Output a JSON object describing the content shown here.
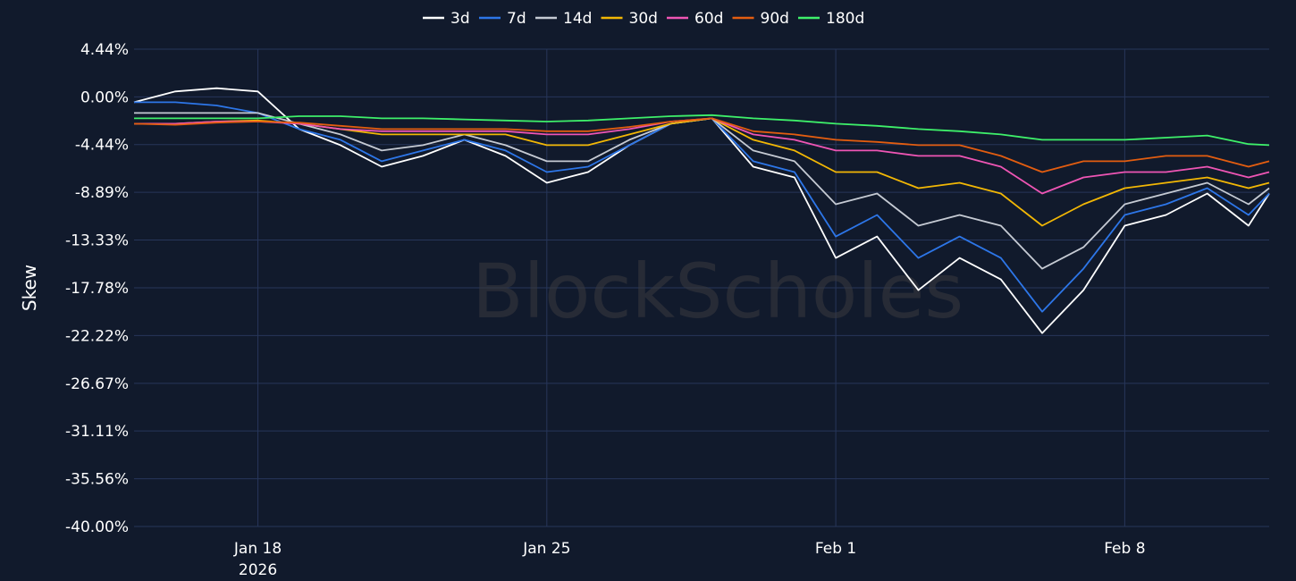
{
  "chart_data": {
    "type": "line",
    "watermark": "BlockScholes",
    "ylabel": "Skew",
    "ylim": [
      -40.0,
      4.44
    ],
    "y_ticks": [
      "4.44%",
      "0.00%",
      "-4.44%",
      "-8.89%",
      "-13.33%",
      "-17.78%",
      "-22.22%",
      "-26.67%",
      "-31.11%",
      "-35.56%",
      "-40.00%"
    ],
    "y_tick_values": [
      4.44,
      0.0,
      -4.44,
      -8.89,
      -13.33,
      -17.78,
      -22.22,
      -26.67,
      -31.11,
      -35.56,
      -40.0
    ],
    "xlim": [
      "2026-01-15",
      "2026-02-11T12:00"
    ],
    "x_ticks": [
      {
        "date": "2026-01-18",
        "label": "Jan 18",
        "sublabel": "2026"
      },
      {
        "date": "2026-01-25",
        "label": "Jan 25",
        "sublabel": ""
      },
      {
        "date": "2026-02-01",
        "label": "Feb 1",
        "sublabel": ""
      },
      {
        "date": "2026-02-08",
        "label": "Feb 8",
        "sublabel": ""
      }
    ],
    "grid": true,
    "legend_position": "top-center",
    "series": [
      {
        "name": "3d",
        "color": "#ffffff",
        "points": [
          [
            "2026-01-15",
            -0.5
          ],
          [
            "2026-01-16",
            0.5
          ],
          [
            "2026-01-17",
            0.8
          ],
          [
            "2026-01-18",
            0.5
          ],
          [
            "2026-01-19",
            -3
          ],
          [
            "2026-01-20",
            -4.5
          ],
          [
            "2026-01-21",
            -6.5
          ],
          [
            "2026-01-22",
            -5.5
          ],
          [
            "2026-01-23",
            -4
          ],
          [
            "2026-01-24",
            -5.5
          ],
          [
            "2026-01-25",
            -8
          ],
          [
            "2026-01-26",
            -7
          ],
          [
            "2026-01-27",
            -4.5
          ],
          [
            "2026-01-28",
            -2.5
          ],
          [
            "2026-01-29",
            -2
          ],
          [
            "2026-01-30",
            -6.5
          ],
          [
            "2026-01-31",
            -7.5
          ],
          [
            "2026-02-01",
            -15
          ],
          [
            "2026-02-02",
            -13
          ],
          [
            "2026-02-03",
            -18
          ],
          [
            "2026-02-04",
            -15
          ],
          [
            "2026-02-05",
            -17
          ],
          [
            "2026-02-06",
            -22
          ],
          [
            "2026-02-07",
            -18
          ],
          [
            "2026-02-08",
            -12
          ],
          [
            "2026-02-09",
            -11
          ],
          [
            "2026-02-10",
            -9
          ],
          [
            "2026-02-11",
            -12
          ],
          [
            "2026-02-11T12:00",
            -9
          ]
        ]
      },
      {
        "name": "7d",
        "color": "#2d76e8",
        "points": [
          [
            "2026-01-15",
            -0.5
          ],
          [
            "2026-01-16",
            -0.5
          ],
          [
            "2026-01-17",
            -0.8
          ],
          [
            "2026-01-18",
            -1.5
          ],
          [
            "2026-01-19",
            -3
          ],
          [
            "2026-01-20",
            -4
          ],
          [
            "2026-01-21",
            -6
          ],
          [
            "2026-01-22",
            -5
          ],
          [
            "2026-01-23",
            -4
          ],
          [
            "2026-01-24",
            -5
          ],
          [
            "2026-01-25",
            -7
          ],
          [
            "2026-01-26",
            -6.5
          ],
          [
            "2026-01-27",
            -4.5
          ],
          [
            "2026-01-28",
            -2.5
          ],
          [
            "2026-01-29",
            -2
          ],
          [
            "2026-01-30",
            -6
          ],
          [
            "2026-01-31",
            -7
          ],
          [
            "2026-02-01",
            -13
          ],
          [
            "2026-02-02",
            -11
          ],
          [
            "2026-02-03",
            -15
          ],
          [
            "2026-02-04",
            -13
          ],
          [
            "2026-02-05",
            -15
          ],
          [
            "2026-02-06",
            -20
          ],
          [
            "2026-02-07",
            -16
          ],
          [
            "2026-02-08",
            -11
          ],
          [
            "2026-02-09",
            -10
          ],
          [
            "2026-02-10",
            -8.5
          ],
          [
            "2026-02-11",
            -11
          ],
          [
            "2026-02-11T12:00",
            -9
          ]
        ]
      },
      {
        "name": "14d",
        "color": "#c5cad3",
        "points": [
          [
            "2026-01-15",
            -1.5
          ],
          [
            "2026-01-16",
            -1.5
          ],
          [
            "2026-01-17",
            -1.5
          ],
          [
            "2026-01-18",
            -1.5
          ],
          [
            "2026-01-19",
            -2.5
          ],
          [
            "2026-01-20",
            -3.5
          ],
          [
            "2026-01-21",
            -5
          ],
          [
            "2026-01-22",
            -4.5
          ],
          [
            "2026-01-23",
            -3.5
          ],
          [
            "2026-01-24",
            -4.5
          ],
          [
            "2026-01-25",
            -6
          ],
          [
            "2026-01-26",
            -6
          ],
          [
            "2026-01-27",
            -4
          ],
          [
            "2026-01-28",
            -2.5
          ],
          [
            "2026-01-29",
            -2
          ],
          [
            "2026-01-30",
            -5
          ],
          [
            "2026-01-31",
            -6
          ],
          [
            "2026-02-01",
            -10
          ],
          [
            "2026-02-02",
            -9
          ],
          [
            "2026-02-03",
            -12
          ],
          [
            "2026-02-04",
            -11
          ],
          [
            "2026-02-05",
            -12
          ],
          [
            "2026-02-06",
            -16
          ],
          [
            "2026-02-07",
            -14
          ],
          [
            "2026-02-08",
            -10
          ],
          [
            "2026-02-09",
            -9
          ],
          [
            "2026-02-10",
            -8
          ],
          [
            "2026-02-11",
            -10
          ],
          [
            "2026-02-11T12:00",
            -8.5
          ]
        ]
      },
      {
        "name": "30d",
        "color": "#f2b705",
        "points": [
          [
            "2026-01-15",
            -2.5
          ],
          [
            "2026-01-16",
            -2.5
          ],
          [
            "2026-01-17",
            -2.3
          ],
          [
            "2026-01-18",
            -2.2
          ],
          [
            "2026-01-19",
            -2.5
          ],
          [
            "2026-01-20",
            -3
          ],
          [
            "2026-01-21",
            -3.5
          ],
          [
            "2026-01-22",
            -3.5
          ],
          [
            "2026-01-23",
            -3.5
          ],
          [
            "2026-01-24",
            -3.5
          ],
          [
            "2026-01-25",
            -4.5
          ],
          [
            "2026-01-26",
            -4.5
          ],
          [
            "2026-01-27",
            -3.5
          ],
          [
            "2026-01-28",
            -2.5
          ],
          [
            "2026-01-29",
            -2
          ],
          [
            "2026-01-30",
            -4
          ],
          [
            "2026-01-31",
            -5
          ],
          [
            "2026-02-01",
            -7
          ],
          [
            "2026-02-02",
            -7
          ],
          [
            "2026-02-03",
            -8.5
          ],
          [
            "2026-02-04",
            -8
          ],
          [
            "2026-02-05",
            -9
          ],
          [
            "2026-02-06",
            -12
          ],
          [
            "2026-02-07",
            -10
          ],
          [
            "2026-02-08",
            -8.5
          ],
          [
            "2026-02-09",
            -8
          ],
          [
            "2026-02-10",
            -7.5
          ],
          [
            "2026-02-11",
            -8.5
          ],
          [
            "2026-02-11T12:00",
            -8
          ]
        ]
      },
      {
        "name": "60d",
        "color": "#ee55b4",
        "points": [
          [
            "2026-01-15",
            -2.5
          ],
          [
            "2026-01-16",
            -2.5
          ],
          [
            "2026-01-17",
            -2.3
          ],
          [
            "2026-01-18",
            -2.3
          ],
          [
            "2026-01-19",
            -2.5
          ],
          [
            "2026-01-20",
            -3
          ],
          [
            "2026-01-21",
            -3.2
          ],
          [
            "2026-01-22",
            -3.2
          ],
          [
            "2026-01-23",
            -3.2
          ],
          [
            "2026-01-24",
            -3.2
          ],
          [
            "2026-01-25",
            -3.5
          ],
          [
            "2026-01-26",
            -3.5
          ],
          [
            "2026-01-27",
            -3
          ],
          [
            "2026-01-28",
            -2.3
          ],
          [
            "2026-01-29",
            -2
          ],
          [
            "2026-01-30",
            -3.5
          ],
          [
            "2026-01-31",
            -4
          ],
          [
            "2026-02-01",
            -5
          ],
          [
            "2026-02-02",
            -5
          ],
          [
            "2026-02-03",
            -5.5
          ],
          [
            "2026-02-04",
            -5.5
          ],
          [
            "2026-02-05",
            -6.5
          ],
          [
            "2026-02-06",
            -9
          ],
          [
            "2026-02-07",
            -7.5
          ],
          [
            "2026-02-08",
            -7
          ],
          [
            "2026-02-09",
            -7
          ],
          [
            "2026-02-10",
            -6.5
          ],
          [
            "2026-02-11",
            -7.5
          ],
          [
            "2026-02-11T12:00",
            -7
          ]
        ]
      },
      {
        "name": "90d",
        "color": "#e35d10",
        "points": [
          [
            "2026-01-15",
            -2.5
          ],
          [
            "2026-01-16",
            -2.6
          ],
          [
            "2026-01-17",
            -2.4
          ],
          [
            "2026-01-18",
            -2.3
          ],
          [
            "2026-01-19",
            -2.4
          ],
          [
            "2026-01-20",
            -2.7
          ],
          [
            "2026-01-21",
            -3
          ],
          [
            "2026-01-22",
            -3
          ],
          [
            "2026-01-23",
            -3
          ],
          [
            "2026-01-24",
            -3
          ],
          [
            "2026-01-25",
            -3.2
          ],
          [
            "2026-01-26",
            -3.2
          ],
          [
            "2026-01-27",
            -2.8
          ],
          [
            "2026-01-28",
            -2.3
          ],
          [
            "2026-01-29",
            -2
          ],
          [
            "2026-01-30",
            -3.2
          ],
          [
            "2026-01-31",
            -3.5
          ],
          [
            "2026-02-01",
            -4
          ],
          [
            "2026-02-02",
            -4.2
          ],
          [
            "2026-02-03",
            -4.5
          ],
          [
            "2026-02-04",
            -4.5
          ],
          [
            "2026-02-05",
            -5.5
          ],
          [
            "2026-02-06",
            -7
          ],
          [
            "2026-02-07",
            -6
          ],
          [
            "2026-02-08",
            -6
          ],
          [
            "2026-02-09",
            -5.5
          ],
          [
            "2026-02-10",
            -5.5
          ],
          [
            "2026-02-11",
            -6.5
          ],
          [
            "2026-02-11T12:00",
            -6
          ]
        ]
      },
      {
        "name": "180d",
        "color": "#3ef06a",
        "points": [
          [
            "2026-01-15",
            -2
          ],
          [
            "2026-01-16",
            -2
          ],
          [
            "2026-01-17",
            -2
          ],
          [
            "2026-01-18",
            -2
          ],
          [
            "2026-01-19",
            -1.8
          ],
          [
            "2026-01-20",
            -1.8
          ],
          [
            "2026-01-21",
            -2
          ],
          [
            "2026-01-22",
            -2
          ],
          [
            "2026-01-23",
            -2.1
          ],
          [
            "2026-01-24",
            -2.2
          ],
          [
            "2026-01-25",
            -2.3
          ],
          [
            "2026-01-26",
            -2.2
          ],
          [
            "2026-01-27",
            -2
          ],
          [
            "2026-01-28",
            -1.8
          ],
          [
            "2026-01-29",
            -1.7
          ],
          [
            "2026-01-30",
            -2
          ],
          [
            "2026-01-31",
            -2.2
          ],
          [
            "2026-02-01",
            -2.5
          ],
          [
            "2026-02-02",
            -2.7
          ],
          [
            "2026-02-03",
            -3
          ],
          [
            "2026-02-04",
            -3.2
          ],
          [
            "2026-02-05",
            -3.5
          ],
          [
            "2026-02-06",
            -4
          ],
          [
            "2026-02-07",
            -4
          ],
          [
            "2026-02-08",
            -4
          ],
          [
            "2026-02-09",
            -3.8
          ],
          [
            "2026-02-10",
            -3.6
          ],
          [
            "2026-02-11",
            -4.4
          ],
          [
            "2026-02-11T12:00",
            -4.5
          ]
        ]
      }
    ]
  }
}
